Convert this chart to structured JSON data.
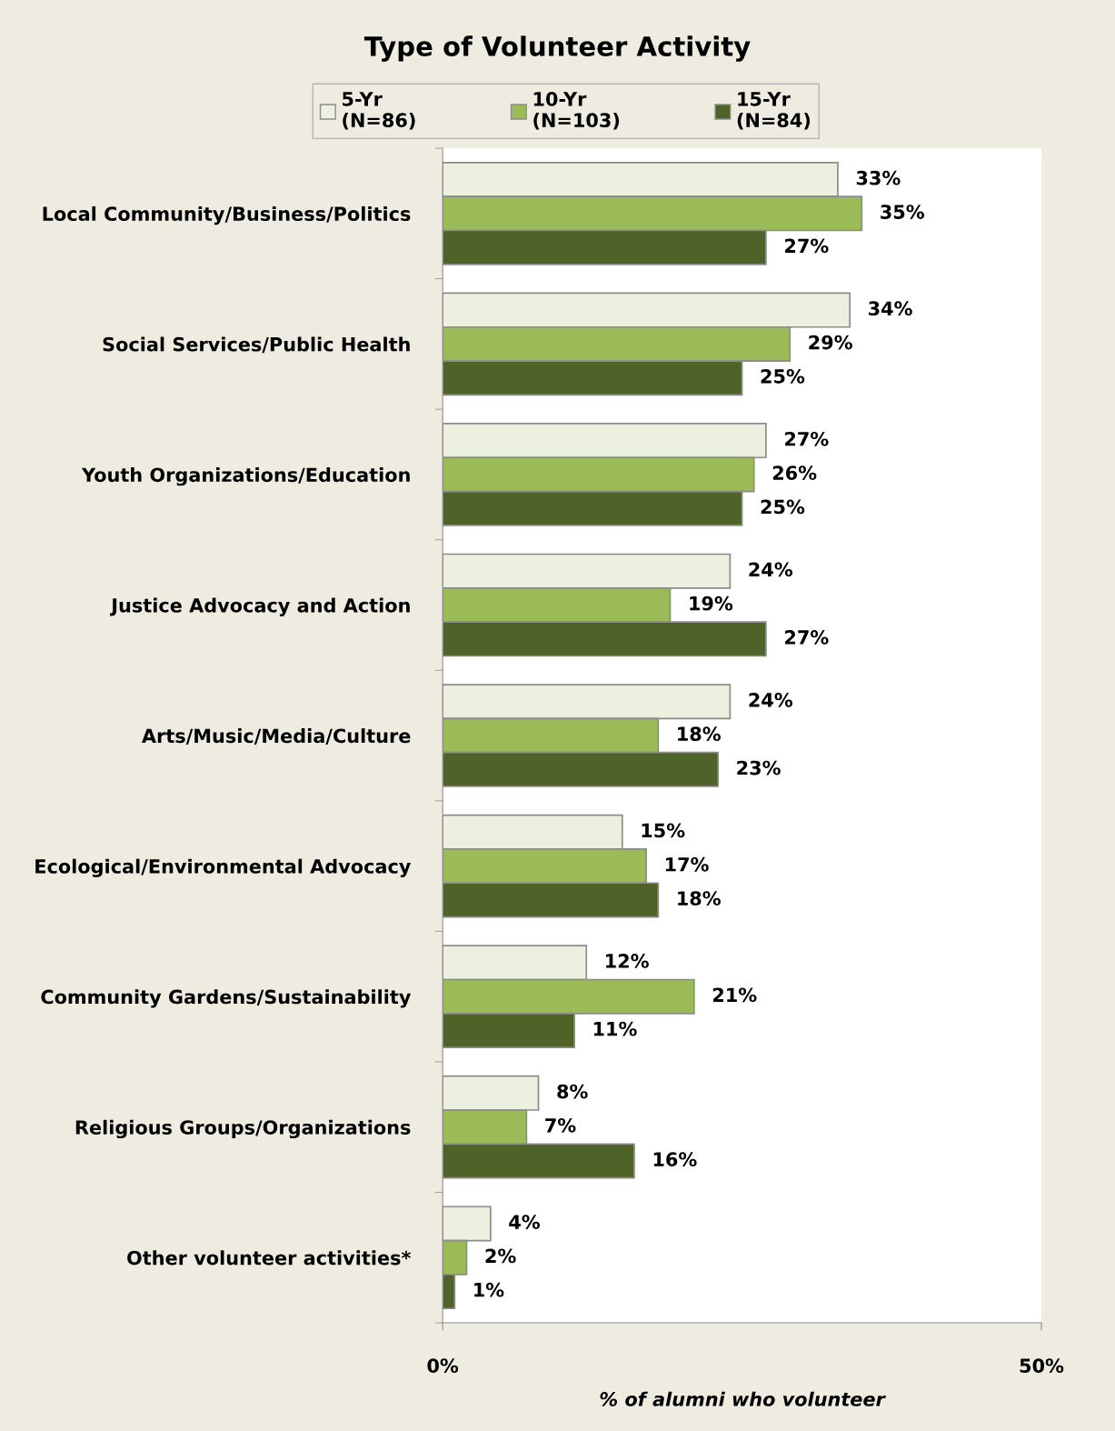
{
  "chart_data": {
    "type": "bar",
    "orientation": "horizontal",
    "title": "Type of Volunteer Activity",
    "xlabel": "% of alumni who volunteer",
    "categories": [
      "Local Community/Business/Politics",
      "Social Services/Public Health",
      "Youth Organizations/Education",
      "Justice Advocacy and Action",
      "Arts/Music/Media/Culture",
      "Ecological/Environmental Advocacy",
      "Community Gardens/Sustainability",
      "Religious Groups/Organizations",
      "Other volunteer activities*"
    ],
    "series": [
      {
        "name": "5-Yr\n(N=86)",
        "color": "#ebf1de",
        "values": [
          33,
          34,
          27,
          24,
          24,
          15,
          12,
          8,
          4
        ],
        "value_labels": [
          "33%",
          "34%",
          "27%",
          "24%",
          "24%",
          "15%",
          "12%",
          "8%",
          "4%"
        ]
      },
      {
        "name": "10-Yr\n(N=103)",
        "color": "#9bbb59",
        "values": [
          35,
          29,
          26,
          19,
          18,
          17,
          21,
          7,
          2
        ],
        "value_labels": [
          "35%",
          "29%",
          "26%",
          "19%",
          "18%",
          "17%",
          "21%",
          "7%",
          "2%"
        ]
      },
      {
        "name": "15-Yr\n(N=84)",
        "color": "#4f6228",
        "values": [
          27,
          25,
          25,
          27,
          23,
          18,
          11,
          16,
          1
        ],
        "value_labels": [
          "27%",
          "25%",
          "25%",
          "27%",
          "23%",
          "18%",
          "11%",
          "16%",
          "1%"
        ]
      }
    ],
    "xlim": [
      0,
      50
    ],
    "xticks": [
      {
        "value": 0,
        "label": "0%"
      },
      {
        "value": 50,
        "label": "50%"
      }
    ],
    "grid": false,
    "legend": "top"
  }
}
